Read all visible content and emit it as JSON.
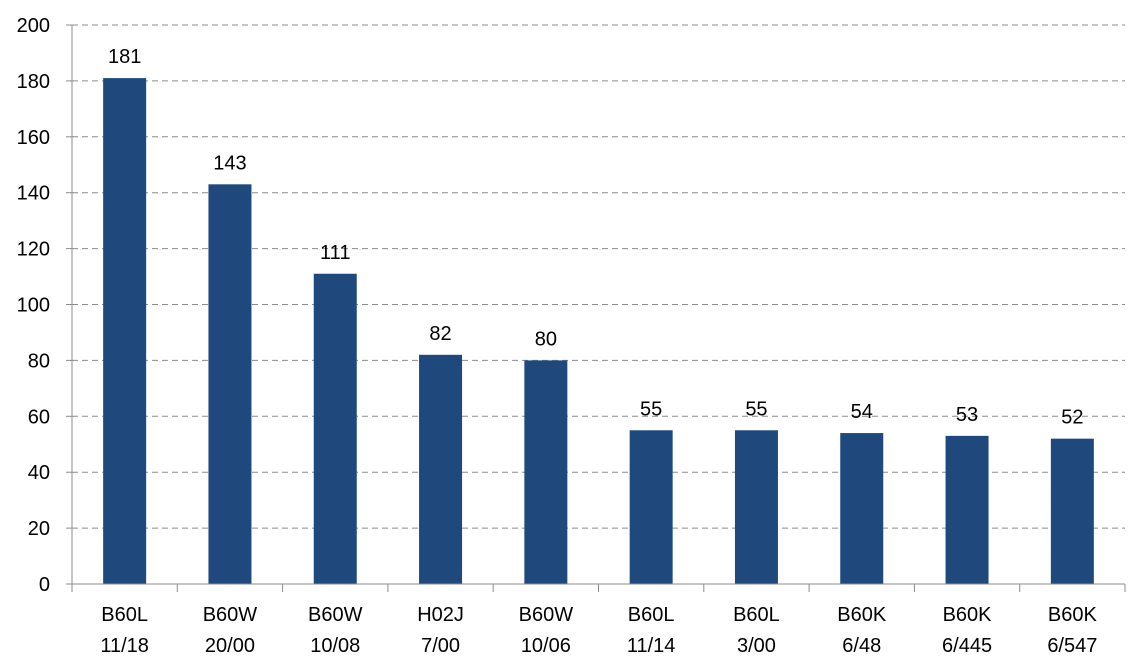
{
  "chart_data": {
    "type": "bar",
    "title": "",
    "xlabel": "",
    "ylabel": "",
    "ylim": [
      0,
      200
    ],
    "yticks": [
      0,
      20,
      40,
      60,
      80,
      100,
      120,
      140,
      160,
      180,
      200
    ],
    "grid": "horizontal-dashed",
    "legend": "none",
    "bar_color": "#1F497D",
    "categories": [
      [
        "B60L",
        "11/18"
      ],
      [
        "B60W",
        "20/00"
      ],
      [
        "B60W",
        "10/08"
      ],
      [
        "H02J",
        "7/00"
      ],
      [
        "B60W",
        "10/06"
      ],
      [
        "B60L",
        "11/14"
      ],
      [
        "B60L",
        "3/00"
      ],
      [
        "B60K",
        "6/48"
      ],
      [
        "B60K",
        "6/445"
      ],
      [
        "B60K",
        "6/547"
      ]
    ],
    "values": [
      181,
      143,
      111,
      82,
      80,
      55,
      55,
      54,
      53,
      52
    ],
    "data_labels": [
      "181",
      "143",
      "111",
      "82",
      "80",
      "55",
      "55",
      "54",
      "53",
      "52"
    ]
  }
}
